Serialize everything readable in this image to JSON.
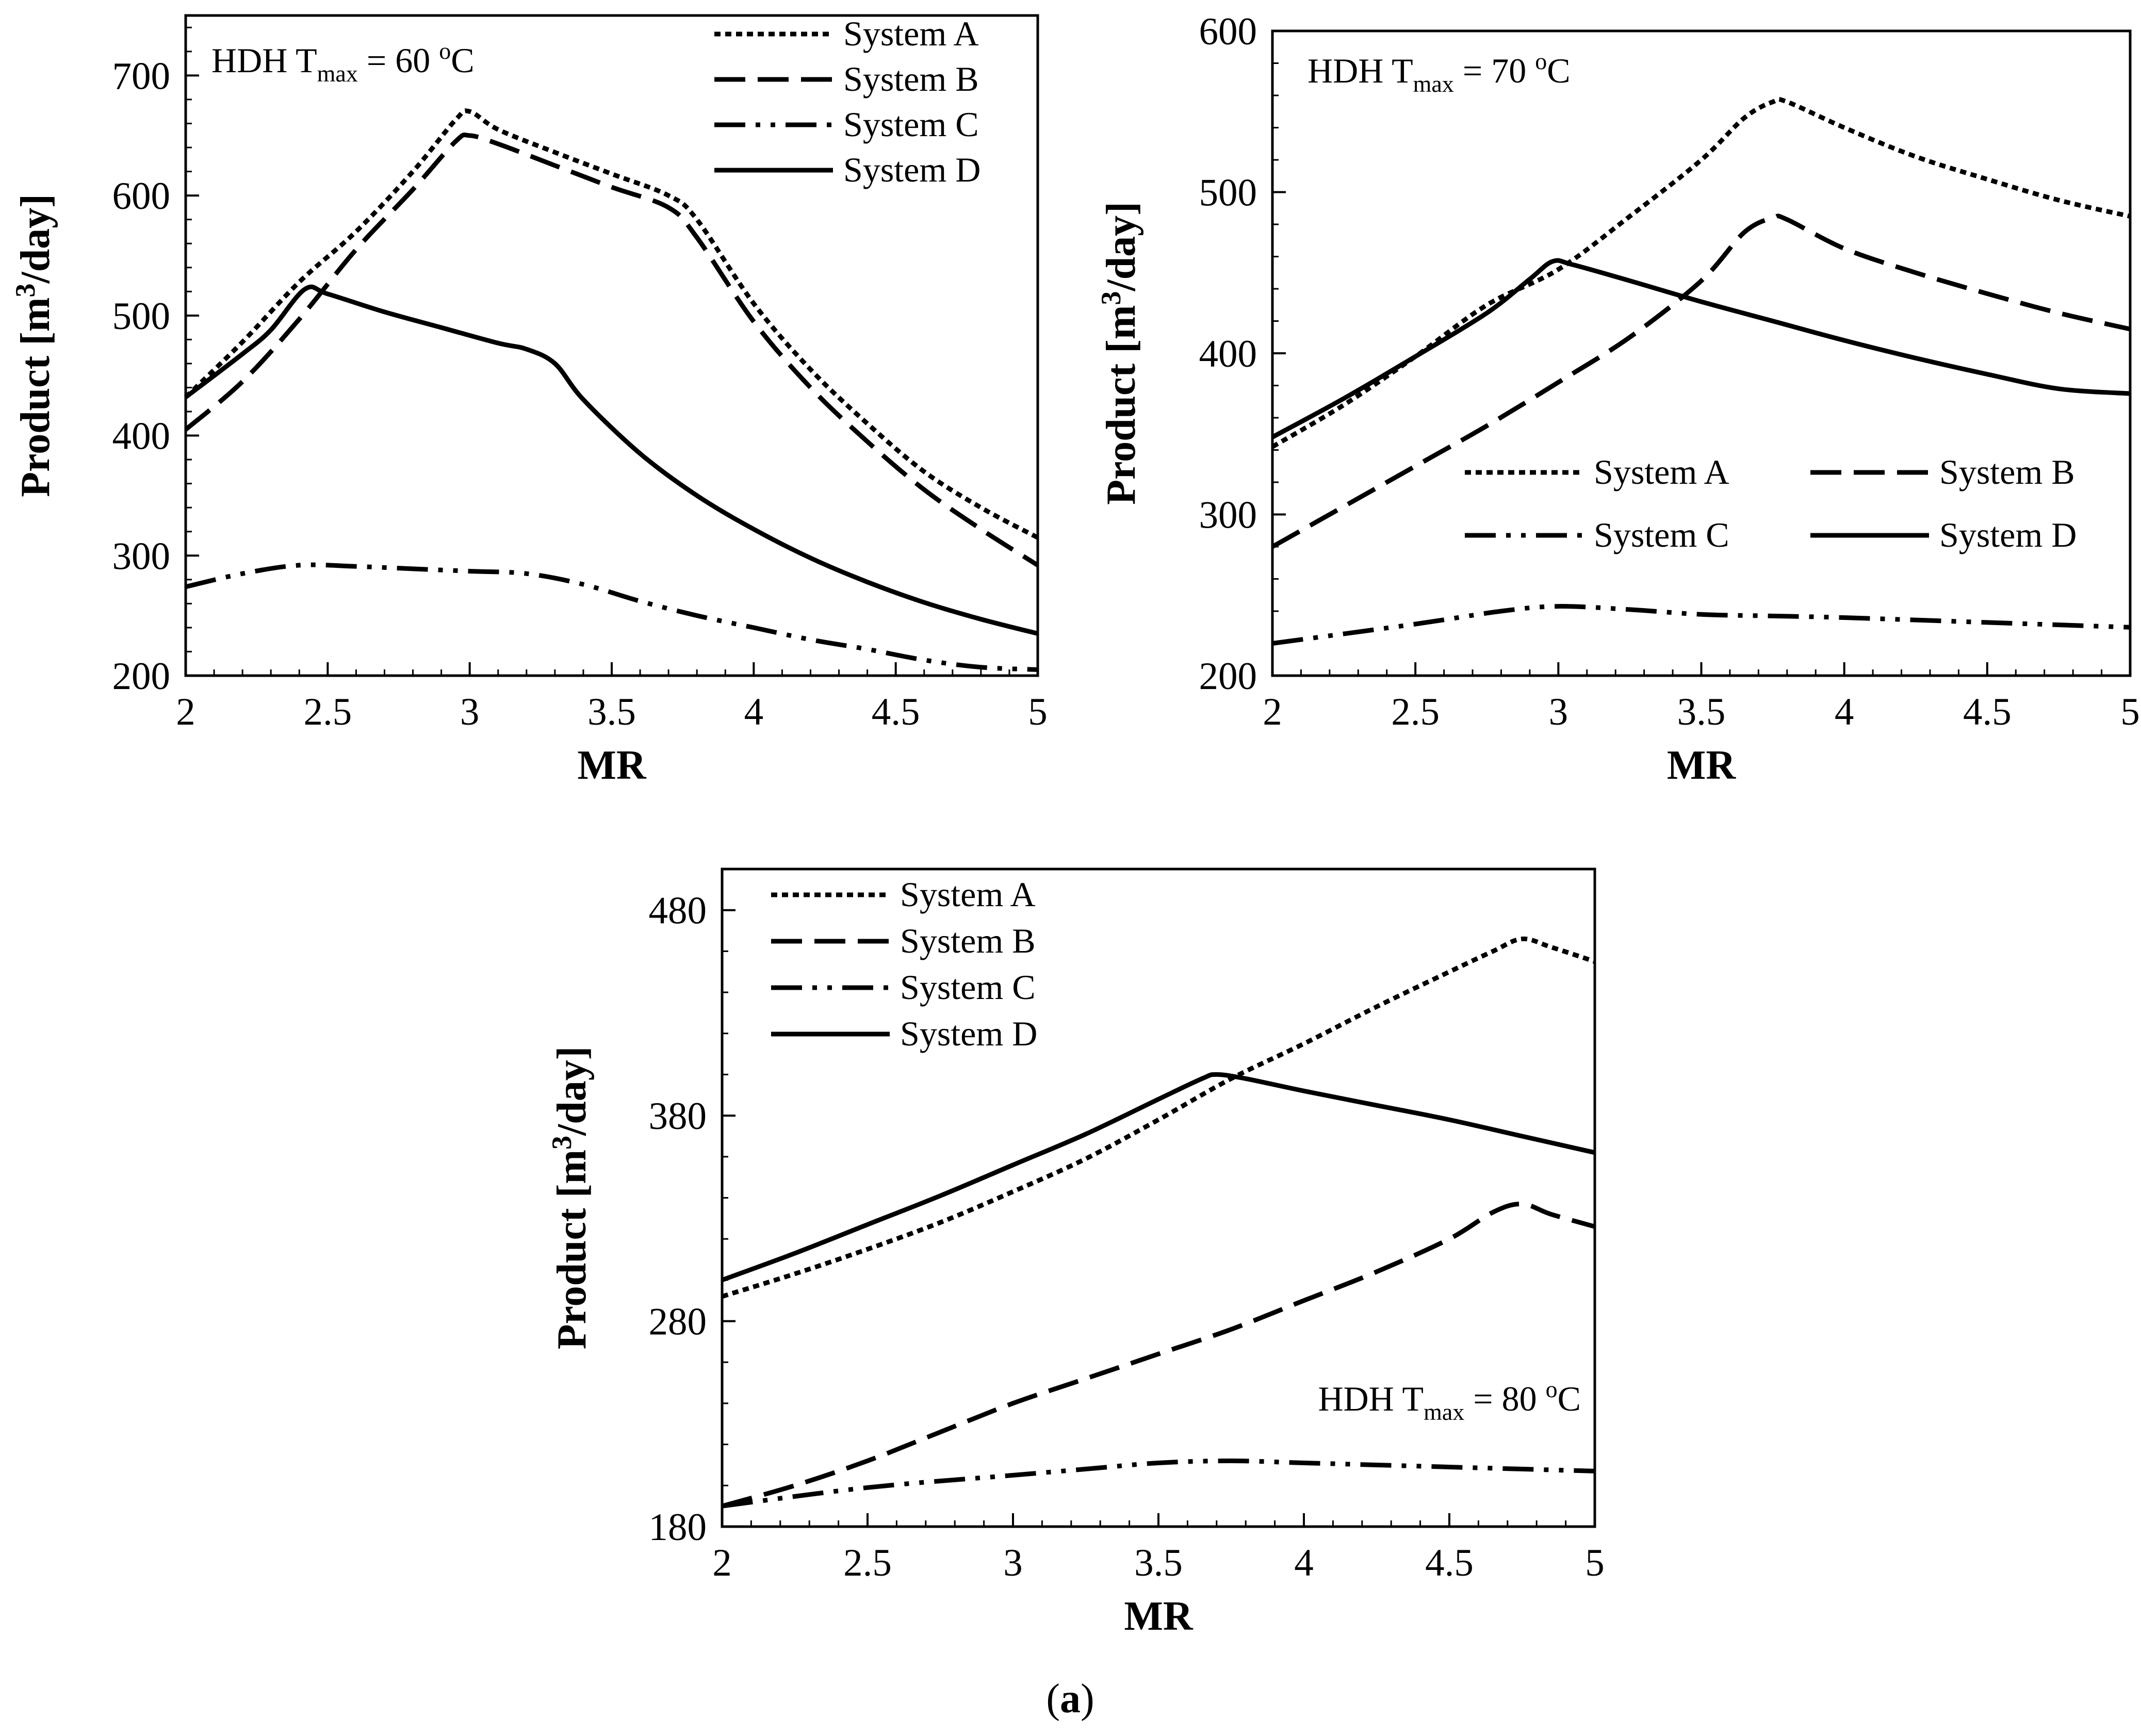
{
  "figure": {
    "caption_paren_open": "(",
    "caption_letter": "a",
    "caption_paren_close": ")"
  },
  "chart_data": [
    {
      "type": "line",
      "panel": "top-left",
      "title": "",
      "xlabel": "MR",
      "ylabel_pre": "Product [m",
      "ylabel_sup": "3",
      "ylabel_post": "/day]",
      "annotation": {
        "pre": "HDH T",
        "sub": "max",
        "mid": " = 60 ",
        "sup": "o",
        "post": "C"
      },
      "xlim": [
        2,
        5
      ],
      "ylim": [
        200,
        750
      ],
      "xticks": [
        2,
        2.5,
        3,
        3.5,
        4,
        4.5,
        5
      ],
      "xtick_labels": [
        "2",
        "2.5",
        "3",
        "3.5",
        "4",
        "4.5",
        "5"
      ],
      "yticks": [
        200,
        300,
        400,
        500,
        600,
        700
      ],
      "ytick_labels": [
        "200",
        "300",
        "400",
        "500",
        "600",
        "700"
      ],
      "grid": false,
      "legend_placement": "top-right",
      "legend_columns": 1,
      "series": [
        {
          "name": "System A",
          "style": "dotted",
          "points": [
            [
              2,
              432
            ],
            [
              2.2,
              478
            ],
            [
              2.4,
              528
            ],
            [
              2.6,
              570
            ],
            [
              2.8,
              620
            ],
            [
              2.95,
              663
            ],
            [
              3.0,
              670
            ],
            [
              3.1,
              655
            ],
            [
              3.3,
              636
            ],
            [
              3.5,
              618
            ],
            [
              3.7,
              600
            ],
            [
              3.8,
              580
            ],
            [
              4.0,
              510
            ],
            [
              4.2,
              455
            ],
            [
              4.4,
              410
            ],
            [
              4.6,
              370
            ],
            [
              4.8,
              340
            ],
            [
              5.0,
              315
            ]
          ]
        },
        {
          "name": "System B",
          "style": "dash",
          "points": [
            [
              2,
              405
            ],
            [
              2.2,
              445
            ],
            [
              2.4,
              497
            ],
            [
              2.6,
              555
            ],
            [
              2.8,
              605
            ],
            [
              2.95,
              645
            ],
            [
              3.0,
              650
            ],
            [
              3.1,
              643
            ],
            [
              3.3,
              625
            ],
            [
              3.5,
              607
            ],
            [
              3.7,
              590
            ],
            [
              3.8,
              565
            ],
            [
              4.0,
              495
            ],
            [
              4.2,
              440
            ],
            [
              4.4,
              395
            ],
            [
              4.6,
              355
            ],
            [
              4.8,
              322
            ],
            [
              5.0,
              292
            ]
          ]
        },
        {
          "name": "System C",
          "style": "dashdotdot",
          "points": [
            [
              2,
              274
            ],
            [
              2.2,
              285
            ],
            [
              2.4,
              292
            ],
            [
              2.6,
              291
            ],
            [
              2.8,
              289
            ],
            [
              3.0,
              287
            ],
            [
              3.2,
              285
            ],
            [
              3.4,
              276
            ],
            [
              3.6,
              262
            ],
            [
              3.8,
              250
            ],
            [
              4.0,
              240
            ],
            [
              4.2,
              230
            ],
            [
              4.4,
              222
            ],
            [
              4.6,
              213
            ],
            [
              4.8,
              207
            ],
            [
              5.0,
              205
            ]
          ]
        },
        {
          "name": "System D",
          "style": "solid",
          "points": [
            [
              2,
              432
            ],
            [
              2.2,
              468
            ],
            [
              2.3,
              488
            ],
            [
              2.42,
              522
            ],
            [
              2.5,
              518
            ],
            [
              2.7,
              503
            ],
            [
              2.9,
              490
            ],
            [
              3.1,
              477
            ],
            [
              3.2,
              472
            ],
            [
              3.3,
              460
            ],
            [
              3.4,
              430
            ],
            [
              3.6,
              385
            ],
            [
              3.8,
              350
            ],
            [
              4.0,
              322
            ],
            [
              4.2,
              298
            ],
            [
              4.4,
              278
            ],
            [
              4.6,
              261
            ],
            [
              4.8,
              247
            ],
            [
              5.0,
              235
            ]
          ]
        }
      ]
    },
    {
      "type": "line",
      "panel": "top-right",
      "title": "",
      "xlabel": "MR",
      "ylabel_pre": "Product [m",
      "ylabel_sup": "3",
      "ylabel_post": "/day]",
      "annotation": {
        "pre": "HDH T",
        "sub": "max",
        "mid": " = 70 ",
        "sup": "o",
        "post": "C"
      },
      "xlim": [
        2,
        5
      ],
      "ylim": [
        200,
        600
      ],
      "xticks": [
        2,
        2.5,
        3,
        3.5,
        4,
        4.5,
        5
      ],
      "xtick_labels": [
        "2",
        "2.5",
        "3",
        "3.5",
        "4",
        "4.5",
        "5"
      ],
      "yticks": [
        200,
        300,
        400,
        500,
        600
      ],
      "ytick_labels": [
        "200",
        "300",
        "400",
        "500",
        "600"
      ],
      "grid": false,
      "legend_placement": "center-right",
      "legend_columns": 2,
      "series": [
        {
          "name": "System A",
          "style": "dotted",
          "points": [
            [
              2,
              342
            ],
            [
              2.25,
              368
            ],
            [
              2.5,
              398
            ],
            [
              2.75,
              430
            ],
            [
              3.0,
              452
            ],
            [
              3.25,
              485
            ],
            [
              3.5,
              520
            ],
            [
              3.65,
              546
            ],
            [
              3.75,
              556
            ],
            [
              3.8,
              556
            ],
            [
              4.0,
              540
            ],
            [
              4.25,
              522
            ],
            [
              4.5,
              508
            ],
            [
              4.75,
              495
            ],
            [
              5.0,
              485
            ]
          ]
        },
        {
          "name": "System B",
          "style": "dash",
          "points": [
            [
              2,
              280
            ],
            [
              2.25,
              305
            ],
            [
              2.5,
              330
            ],
            [
              2.75,
              355
            ],
            [
              3.0,
              382
            ],
            [
              3.25,
              410
            ],
            [
              3.5,
              445
            ],
            [
              3.65,
              475
            ],
            [
              3.75,
              484
            ],
            [
              3.8,
              483
            ],
            [
              4.0,
              465
            ],
            [
              4.25,
              450
            ],
            [
              4.5,
              437
            ],
            [
              4.75,
              425
            ],
            [
              5.0,
              415
            ]
          ]
        },
        {
          "name": "System C",
          "style": "dashdotdot",
          "points": [
            [
              2,
              220
            ],
            [
              2.5,
              232
            ],
            [
              2.8,
              240
            ],
            [
              3.0,
              243
            ],
            [
              3.25,
              241
            ],
            [
              3.5,
              238
            ],
            [
              3.75,
              237
            ],
            [
              4.0,
              236
            ],
            [
              4.5,
              233
            ],
            [
              5.0,
              230
            ]
          ]
        },
        {
          "name": "System D",
          "style": "solid",
          "points": [
            [
              2,
              348
            ],
            [
              2.25,
              372
            ],
            [
              2.5,
              398
            ],
            [
              2.75,
              425
            ],
            [
              2.9,
              446
            ],
            [
              2.98,
              457
            ],
            [
              3.05,
              455
            ],
            [
              3.25,
              445
            ],
            [
              3.5,
              432
            ],
            [
              3.75,
              420
            ],
            [
              4.0,
              408
            ],
            [
              4.25,
              397
            ],
            [
              4.5,
              387
            ],
            [
              4.75,
              378
            ],
            [
              5.0,
              375
            ]
          ]
        }
      ]
    },
    {
      "type": "line",
      "panel": "bottom-center",
      "title": "",
      "xlabel": "MR",
      "ylabel_pre": "Product [m",
      "ylabel_sup": "3",
      "ylabel_post": "/day]",
      "annotation": {
        "pre": "HDH T",
        "sub": "max",
        "mid": " = 80 ",
        "sup": "o",
        "post": "C"
      },
      "xlim": [
        2,
        5
      ],
      "ylim": [
        180,
        500
      ],
      "xticks": [
        2,
        2.5,
        3,
        3.5,
        4,
        4.5,
        5
      ],
      "xtick_labels": [
        "2",
        "2.5",
        "3",
        "3.5",
        "4",
        "4.5",
        "5"
      ],
      "yticks": [
        180,
        280,
        380,
        480
      ],
      "ytick_labels": [
        "180",
        "280",
        "380",
        "480"
      ],
      "grid": false,
      "legend_placement": "top-left",
      "legend_columns": 1,
      "series": [
        {
          "name": "System A",
          "style": "dotted",
          "points": [
            [
              2,
              292
            ],
            [
              2.25,
              303
            ],
            [
              2.5,
              315
            ],
            [
              2.75,
              328
            ],
            [
              3.0,
              343
            ],
            [
              3.25,
              359
            ],
            [
              3.5,
              378
            ],
            [
              3.75,
              398
            ],
            [
              4.0,
              415
            ],
            [
              4.25,
              433
            ],
            [
              4.5,
              450
            ],
            [
              4.65,
              460
            ],
            [
              4.75,
              466
            ],
            [
              4.85,
              462
            ],
            [
              5.0,
              455
            ]
          ]
        },
        {
          "name": "System B",
          "style": "dash",
          "points": [
            [
              2,
              190
            ],
            [
              2.25,
              200
            ],
            [
              2.5,
              212
            ],
            [
              2.75,
              226
            ],
            [
              3.0,
              240
            ],
            [
              3.25,
              252
            ],
            [
              3.5,
              264
            ],
            [
              3.75,
              276
            ],
            [
              4.0,
              290
            ],
            [
              4.25,
              304
            ],
            [
              4.5,
              320
            ],
            [
              4.65,
              333
            ],
            [
              4.75,
              337
            ],
            [
              4.85,
              332
            ],
            [
              5.0,
              326
            ]
          ]
        },
        {
          "name": "System C",
          "style": "dashdotdot",
          "points": [
            [
              2,
              190
            ],
            [
              2.5,
              199
            ],
            [
              3.0,
              205
            ],
            [
              3.25,
              208
            ],
            [
              3.5,
              211
            ],
            [
              3.75,
              212
            ],
            [
              4.0,
              211
            ],
            [
              4.25,
              210
            ],
            [
              4.5,
              209
            ],
            [
              4.75,
              208
            ],
            [
              5.0,
              207
            ]
          ]
        },
        {
          "name": "System D",
          "style": "solid",
          "points": [
            [
              2,
              300
            ],
            [
              2.25,
              313
            ],
            [
              2.5,
              327
            ],
            [
              2.75,
              341
            ],
            [
              3.0,
              356
            ],
            [
              3.25,
              371
            ],
            [
              3.5,
              388
            ],
            [
              3.65,
              398
            ],
            [
              3.7,
              400
            ],
            [
              3.8,
              398
            ],
            [
              4.0,
              392
            ],
            [
              4.25,
              385
            ],
            [
              4.5,
              378
            ],
            [
              4.75,
              370
            ],
            [
              5.0,
              362
            ]
          ]
        }
      ]
    }
  ]
}
